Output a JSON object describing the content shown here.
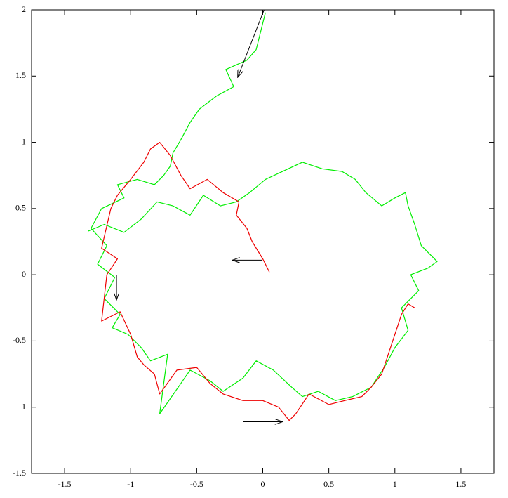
{
  "chart_data": {
    "type": "line",
    "xlim": [
      -1.75,
      1.75
    ],
    "ylim": [
      -1.5,
      2
    ],
    "xticks": [
      -1.5,
      -1,
      -0.5,
      0,
      0.5,
      1,
      1.5
    ],
    "yticks": [
      -1.5,
      -1,
      -0.5,
      0,
      0.5,
      1,
      1.5,
      2
    ],
    "series": [
      {
        "color": "#00ee00",
        "x": [
          0.02,
          -0.05,
          -0.12,
          -0.28,
          -0.22,
          -0.35,
          -0.48,
          -0.55,
          -0.62,
          -0.68,
          -0.7,
          -0.75,
          -0.82,
          -0.95,
          -1.1,
          -1.05,
          -1.22,
          -1.3,
          -1.18,
          -1.25,
          -1.12,
          -1.2,
          -1.08,
          -1.14,
          -1.02,
          -0.92,
          -0.85,
          -0.72,
          -0.78,
          -0.62,
          -0.55,
          -0.4,
          -0.3,
          -0.15,
          -0.05,
          0.08,
          0.22,
          0.3,
          0.42,
          0.55,
          0.68,
          0.82,
          0.92,
          1.0,
          1.1,
          1.05,
          1.18,
          1.12,
          1.25,
          1.32,
          1.2,
          1.15,
          1.1,
          1.08,
          1.0,
          0.9,
          0.78,
          0.7,
          0.6,
          0.45,
          0.3,
          0.15,
          0.02,
          -0.1,
          -0.2,
          -0.32,
          -0.45,
          -0.55,
          -0.68,
          -0.8,
          -0.92,
          -1.05,
          -1.2,
          -1.32
        ],
        "y": [
          1.98,
          1.7,
          1.62,
          1.55,
          1.42,
          1.35,
          1.25,
          1.15,
          1.02,
          0.92,
          0.82,
          0.75,
          0.68,
          0.72,
          0.68,
          0.58,
          0.5,
          0.35,
          0.22,
          0.08,
          -0.02,
          -0.18,
          -0.3,
          -0.4,
          -0.45,
          -0.55,
          -0.65,
          -0.6,
          -1.05,
          -0.82,
          -0.72,
          -0.8,
          -0.88,
          -0.78,
          -0.65,
          -0.72,
          -0.85,
          -0.92,
          -0.88,
          -0.95,
          -0.92,
          -0.85,
          -0.7,
          -0.55,
          -0.42,
          -0.25,
          -0.12,
          0.0,
          0.05,
          0.1,
          0.22,
          0.38,
          0.52,
          0.62,
          0.58,
          0.52,
          0.62,
          0.72,
          0.78,
          0.8,
          0.85,
          0.78,
          0.72,
          0.62,
          0.55,
          0.52,
          0.6,
          0.45,
          0.52,
          0.55,
          0.42,
          0.32,
          0.38,
          0.33
        ]
      },
      {
        "color": "#ee0000",
        "x": [
          0.05,
          0.0,
          -0.08,
          -0.12,
          -0.2,
          -0.18,
          -0.3,
          -0.42,
          -0.55,
          -0.62,
          -0.7,
          -0.78,
          -0.85,
          -0.9,
          -1.0,
          -1.1,
          -1.15,
          -1.22,
          -1.1,
          -1.18,
          -1.22,
          -1.08,
          -1.0,
          -0.95,
          -0.9,
          -0.82,
          -0.78,
          -0.65,
          -0.5,
          -0.4,
          -0.3,
          -0.15,
          0.0,
          0.12,
          0.2,
          0.25,
          0.35,
          0.5,
          0.62,
          0.75,
          0.82,
          0.9,
          0.95,
          1.0,
          1.05,
          1.1,
          1.15
        ],
        "y": [
          0.02,
          0.12,
          0.25,
          0.35,
          0.45,
          0.55,
          0.62,
          0.72,
          0.65,
          0.75,
          0.9,
          1.0,
          0.95,
          0.85,
          0.72,
          0.6,
          0.5,
          0.2,
          0.12,
          0.0,
          -0.35,
          -0.28,
          -0.45,
          -0.62,
          -0.68,
          -0.75,
          -0.9,
          -0.72,
          -0.7,
          -0.82,
          -0.9,
          -0.95,
          -0.95,
          -1.0,
          -1.1,
          -1.05,
          -0.9,
          -0.98,
          -0.95,
          -0.92,
          -0.85,
          -0.75,
          -0.6,
          -0.45,
          -0.3,
          -0.22,
          -0.25
        ]
      }
    ],
    "arrows": [
      {
        "x": [
          0.01,
          -0.19
        ],
        "y": [
          2.0,
          1.49
        ]
      },
      {
        "x": [
          -0.005,
          -0.23
        ],
        "y": [
          0.11,
          0.11
        ]
      },
      {
        "x": [
          -1.107,
          -1.107
        ],
        "y": [
          0.0,
          -0.19
        ]
      },
      {
        "x": [
          -0.15,
          0.15
        ],
        "y": [
          -1.11,
          -1.11
        ]
      }
    ]
  }
}
